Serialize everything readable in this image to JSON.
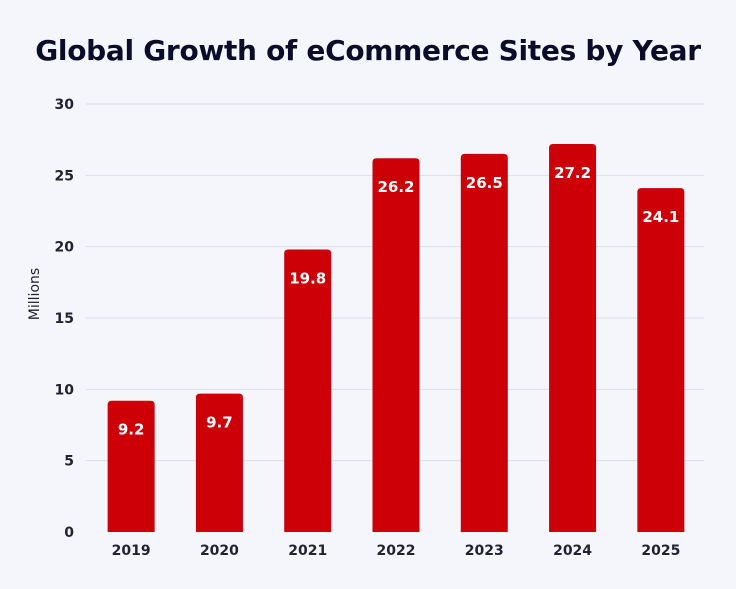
{
  "chart_data": {
    "type": "bar",
    "title": "Global Growth of eCommerce Sites by Year",
    "xlabel": "",
    "ylabel": "Millions",
    "categories": [
      "2019",
      "2020",
      "2021",
      "2022",
      "2023",
      "2024",
      "2025"
    ],
    "values": [
      9.2,
      9.7,
      19.8,
      26.2,
      26.5,
      27.2,
      24.1
    ],
    "data_labels": [
      "9.2",
      "9.7",
      "19.8",
      "26.2",
      "26.5",
      "27.2",
      "24.1"
    ],
    "ylim": [
      0,
      30
    ],
    "yticks": [
      0,
      5,
      10,
      15,
      20,
      25,
      30
    ],
    "grid": true,
    "legend": "none",
    "bar_color": "#cc0006",
    "grid_color": "#dcdfe8",
    "background": "#f4f6fb"
  }
}
